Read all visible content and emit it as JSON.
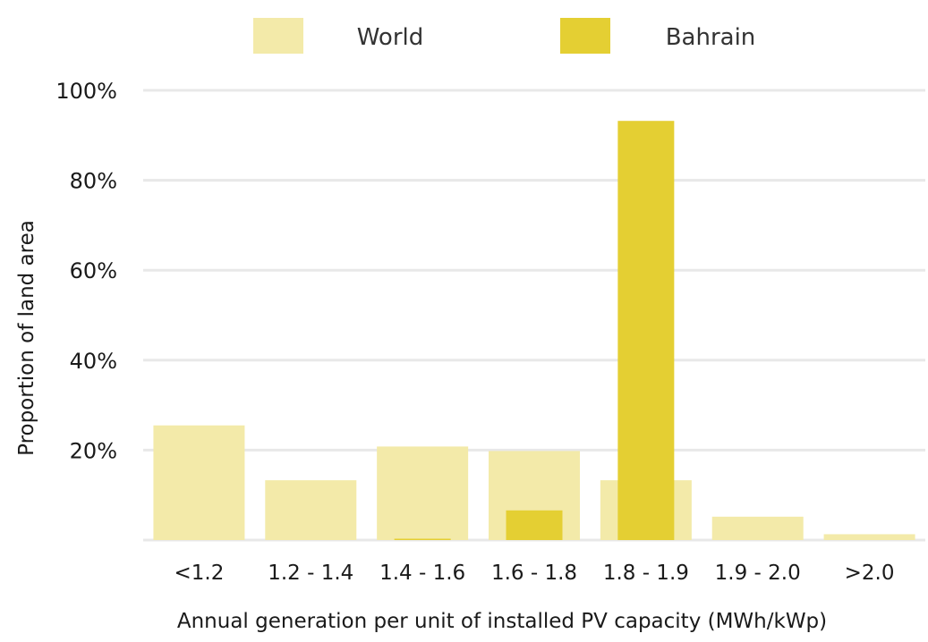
{
  "chart_data": {
    "type": "bar",
    "categories": [
      "<1.2",
      "1.2 - 1.4",
      "1.4 - 1.6",
      "1.6 - 1.8",
      "1.8 - 1.9",
      "1.9 - 2.0",
      ">2.0"
    ],
    "series": [
      {
        "name": "World",
        "values": [
          25.5,
          13.3,
          20.8,
          19.8,
          13.3,
          5.2,
          1.3
        ],
        "color": "#f3eaa9"
      },
      {
        "name": "Bahrain",
        "values": [
          0,
          0,
          0.3,
          6.6,
          93.2,
          0,
          0
        ],
        "color": "#e4cf33"
      }
    ],
    "y_ticks": [
      "20%",
      "40%",
      "60%",
      "80%",
      "100%"
    ],
    "y_tick_values": [
      20,
      40,
      60,
      80,
      100
    ],
    "xlabel": "Annual generation per unit of installed PV capacity (MWh/kWp)",
    "ylabel": "Proportion of land area",
    "ylim": [
      0,
      100
    ],
    "grid": true,
    "gridline_color": "#e8e8e8",
    "legend": "top-center"
  }
}
